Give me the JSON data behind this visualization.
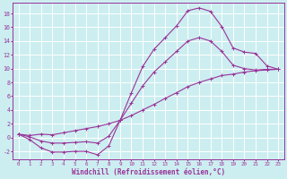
{
  "background_color": "#cceef0",
  "grid_color": "#ffffff",
  "line_color": "#993399",
  "xlabel": "Windchill (Refroidissement éolien,°C)",
  "xlim": [
    -0.5,
    23.5
  ],
  "ylim": [
    -3.2,
    19.5
  ],
  "yticks": [
    -2,
    0,
    2,
    4,
    6,
    8,
    10,
    12,
    14,
    16,
    18
  ],
  "curve_upper_x": [
    0,
    1,
    2,
    3,
    4,
    5,
    6,
    7,
    8,
    9,
    10,
    11,
    12,
    13,
    14,
    15,
    16,
    17,
    18,
    19,
    20,
    21,
    22,
    23
  ],
  "curve_upper_y": [
    0.5,
    -0.3,
    -1.5,
    -2.1,
    -2.1,
    -2.0,
    -2.0,
    -2.5,
    -1.2,
    2.5,
    6.5,
    10.3,
    12.8,
    14.5,
    16.2,
    18.4,
    18.8,
    18.3,
    16.1,
    13.0,
    12.4,
    12.2,
    10.4,
    9.9
  ],
  "curve_lower_x": [
    0,
    1,
    2,
    3,
    4,
    5,
    6,
    7,
    8,
    9,
    10,
    11,
    12,
    13,
    14,
    15,
    16,
    17,
    18,
    19,
    20,
    21,
    22,
    23
  ],
  "curve_lower_y": [
    0.5,
    0.3,
    0.5,
    0.4,
    0.7,
    1.0,
    1.3,
    1.6,
    2.0,
    2.5,
    3.2,
    4.0,
    4.8,
    5.7,
    6.5,
    7.4,
    8.0,
    8.5,
    9.0,
    9.2,
    9.5,
    9.7,
    9.8,
    9.9
  ],
  "curve_mid_x": [
    0,
    1,
    2,
    3,
    4,
    5,
    6,
    7,
    8,
    9,
    10,
    11,
    12,
    13,
    14,
    15,
    16,
    17,
    18,
    19,
    20,
    21,
    22,
    23
  ],
  "curve_mid_y": [
    0.5,
    0.1,
    -0.5,
    -0.8,
    -0.8,
    -0.7,
    -0.6,
    -0.8,
    0.2,
    2.5,
    5.0,
    7.5,
    9.5,
    11.0,
    12.5,
    14.0,
    14.5,
    14.0,
    12.5,
    10.5,
    10.0,
    9.8,
    9.9,
    9.9
  ]
}
